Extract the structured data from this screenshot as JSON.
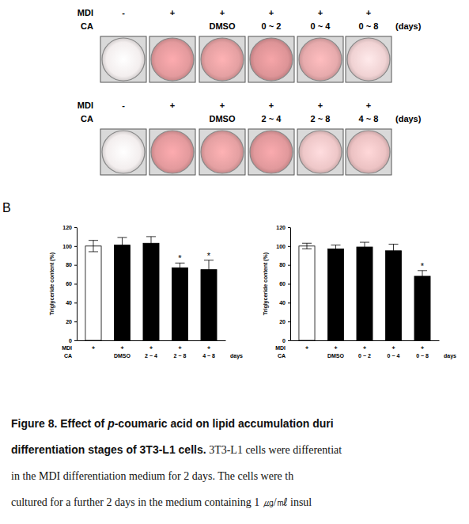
{
  "panel_a": {
    "row_labels": [
      "MDI",
      "CA"
    ],
    "groups": [
      {
        "mdi": [
          "-",
          "+",
          "+",
          "+",
          "+",
          "+"
        ],
        "ca": [
          null,
          null,
          "DMSO",
          "0 ~ 2",
          "0 ~ 4",
          "0 ~ 8"
        ],
        "unit": "(days)"
      },
      {
        "mdi": [
          "-",
          "+",
          "+",
          "+",
          "+",
          "+"
        ],
        "ca": [
          null,
          null,
          "DMSO",
          "2 ~ 4",
          "2 ~ 8",
          "4 ~ 8"
        ],
        "unit": "(days)"
      }
    ]
  },
  "panel_b_label": "B",
  "chart_data": [
    {
      "type": "bar",
      "y_label": "Triglyceride content (%)",
      "categories": [
        null,
        "DMSO",
        "2 ~ 4",
        "2 ~ 8",
        "4 ~ 8"
      ],
      "category_label": "CA",
      "mdi_label": "MDI",
      "mdi": [
        "+",
        "+",
        "+",
        "+",
        "+"
      ],
      "category_unit": "days",
      "values": [
        100,
        101,
        103,
        77,
        75
      ],
      "errors": [
        6,
        8,
        7,
        5,
        10
      ],
      "annotations": [
        null,
        null,
        null,
        "*",
        "*"
      ],
      "colors": [
        "#ffffff",
        "#000000",
        "#000000",
        "#000000",
        "#000000"
      ],
      "ylim": [
        0,
        120
      ],
      "yticks": [
        0,
        20,
        40,
        60,
        80,
        100,
        120
      ]
    },
    {
      "type": "bar",
      "y_label": "Triglyceride content (%)",
      "categories": [
        null,
        "DMSO",
        "0 ~ 2",
        "0 ~ 4",
        "0 ~ 8"
      ],
      "category_label": "CA",
      "mdi_label": "MDI",
      "mdi": [
        "+",
        "+",
        "+",
        "+",
        "+"
      ],
      "category_unit": "days",
      "values": [
        100,
        97,
        99,
        95,
        68
      ],
      "errors": [
        3,
        4,
        5,
        7,
        6
      ],
      "annotations": [
        null,
        null,
        null,
        null,
        "*"
      ],
      "colors": [
        "#ffffff",
        "#000000",
        "#000000",
        "#000000",
        "#000000"
      ],
      "ylim": [
        0,
        120
      ],
      "yticks": [
        0,
        20,
        40,
        60,
        80,
        100,
        120
      ]
    }
  ],
  "caption": {
    "lines": [
      [
        {
          "text": "Figure 8. Effect of ",
          "style": "bold"
        },
        {
          "text": "p",
          "style": "bold-italic"
        },
        {
          "text": "-coumaric acid on lipid accumulation duri",
          "style": "bold"
        }
      ],
      [
        {
          "text": "differentiation stages of 3T3-L1 cells.",
          "style": "bold"
        },
        {
          "text": " 3T3-L1 cells were differentiat",
          "style": "normal"
        }
      ],
      [
        {
          "text": "in the MDI differentiation medium for 2 days. The cells were th",
          "style": "normal"
        }
      ],
      [
        {
          "text": "cultured for a further 2 days in the medium containing 1 ㎍/㎖ insul",
          "style": "normal"
        }
      ]
    ]
  }
}
